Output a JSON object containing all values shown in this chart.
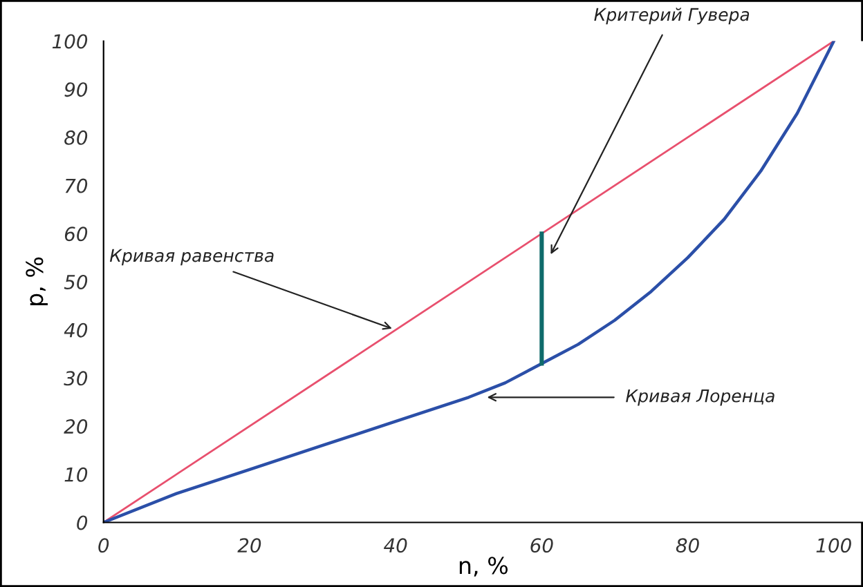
{
  "chart_data": {
    "type": "line",
    "xlabel": "n, %",
    "ylabel": "p, %",
    "series": [
      {
        "color": "#e8506e",
        "x": [
          0,
          100
        ],
        "values": [
          0,
          100
        ]
      },
      {
        "color": "#2b4fa8",
        "x": [
          0,
          10,
          20,
          30,
          40,
          50,
          55,
          60,
          65,
          70,
          75,
          80,
          85,
          90,
          95,
          100
        ],
        "values": [
          0,
          6,
          11,
          16,
          21,
          26,
          29,
          33,
          37,
          42,
          48,
          55,
          63,
          73,
          85,
          100
        ]
      },
      {
        "color": "#0f6b6b",
        "x": [
          60,
          60
        ],
        "values": [
          33,
          60
        ]
      }
    ],
    "annotations": [
      {
        "text": "Кривая равенства",
        "x": 40,
        "y": 40
      },
      {
        "text": "Критерий Гувера",
        "x": 61,
        "y": 55
      },
      {
        "text": "Кривая Лоренца",
        "x": 52,
        "y": 26
      }
    ],
    "xlim": [
      0,
      104
    ],
    "ylim": [
      0,
      100
    ],
    "xticks": [
      0,
      20,
      40,
      60,
      80,
      100
    ],
    "yticks": [
      0,
      10,
      20,
      30,
      40,
      50,
      60,
      70,
      80,
      90,
      100
    ],
    "grid": false,
    "legend": false,
    "marker": "none",
    "line_style": "solid"
  }
}
